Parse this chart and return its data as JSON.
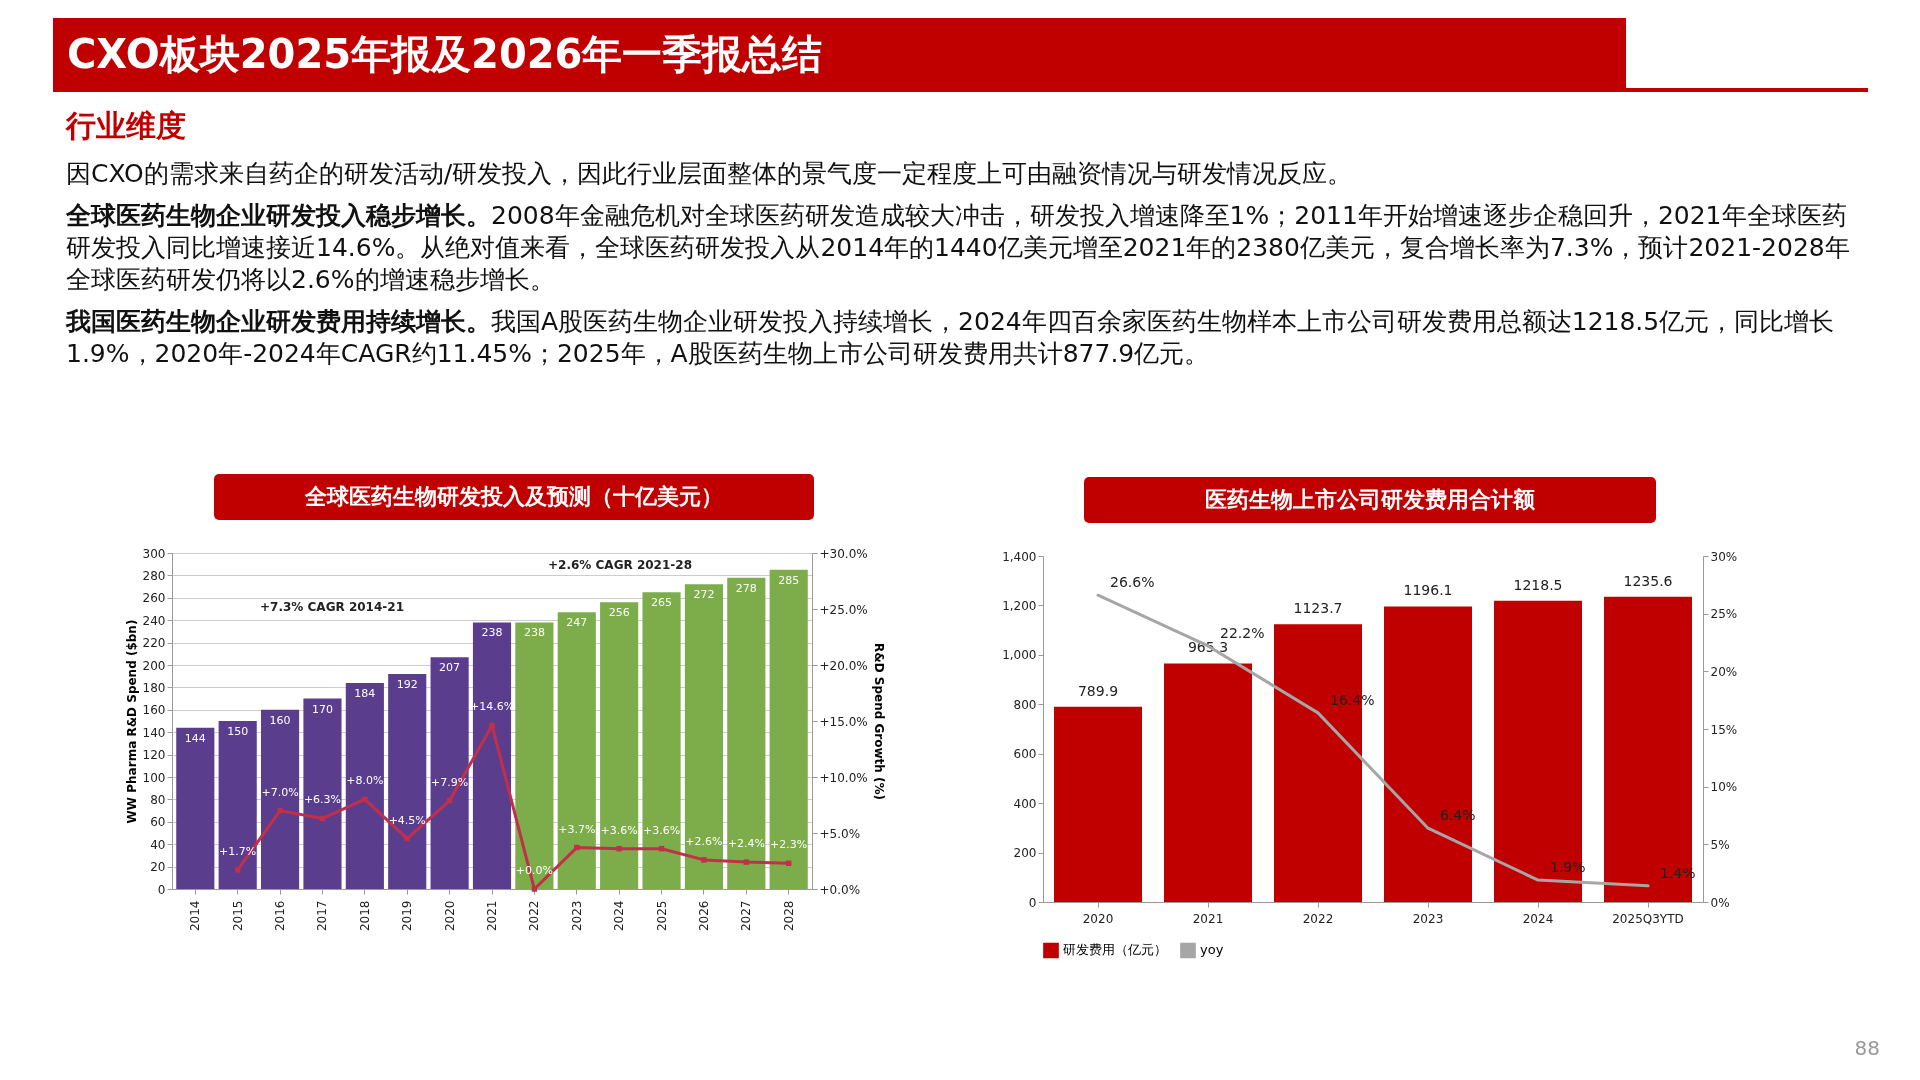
{
  "chart_data": [
    {
      "type": "other",
      "title": "CXO板块2025年报及2026年一季报总结",
      "subtitle": "行业维度",
      "annotations": [
        "因CXO的需求来自药企的研发活动/研发投入，因此行业层面整体的景气度一定程度上可由融资情况与研发情况反应。",
        "全球医药生物企业研发投入稳步增长。2008年金融危机对全球医药研发造成较大冲击，研发投入增速降至1%；2011年开始增速逐步企稳回升，2021年全球医药研发投入同比增速接近14.6%。从绝对值来看，全球医药研发投入从2014年的1440亿美元增至2021年的2380亿美元，复合增长率为7.3%，预计2021-2028年全球医药研发仍将以2.6%的增速稳步增长。",
        "我国医药生物企业研发费用持续增长。我国A股医药生物企业研发投入持续增长，2024年四百余家医药生物样本上市公司研发费用总额达1218.5亿元，同比增长1.9%，2020年-2024年CAGR约11.45%；2025年，A股医药生物上市公司研发费用共计877.9亿元。",
        "88"
      ]
    },
    {
      "type": "bar",
      "title": "全球医药生物研发投入及预测（十亿美元）",
      "ylabel": "WW Pharma R&D Spend ($bn)",
      "y2label": "R&D Spend Growth (%)",
      "categories": [
        "2014",
        "2015",
        "2016",
        "2017",
        "2018",
        "2019",
        "2020",
        "2021",
        "2022",
        "2023",
        "2024",
        "2025",
        "2026",
        "2027",
        "2028"
      ],
      "series": [
        {
          "type": "bar",
          "colors": [
            "#5b3d8e",
            "#5b3d8e",
            "#5b3d8e",
            "#5b3d8e",
            "#5b3d8e",
            "#5b3d8e",
            "#5b3d8e",
            "#5b3d8e",
            "#7cad4a",
            "#7cad4a",
            "#7cad4a",
            "#7cad4a",
            "#7cad4a",
            "#7cad4a",
            "#7cad4a"
          ],
          "values": [
            144,
            150,
            160,
            170,
            184,
            192,
            207,
            238,
            238,
            247,
            256,
            265,
            272,
            278,
            285
          ],
          "value_labels": [
            "144",
            "150",
            "160",
            "170",
            "184",
            "192",
            "207",
            "238",
            "238",
            "247",
            "256",
            "265",
            "272",
            "278",
            "285"
          ]
        },
        {
          "type": "line",
          "axis": "y2",
          "color": "#c0304a",
          "values": [
            null,
            1.7,
            7.0,
            6.3,
            8.0,
            4.5,
            7.9,
            14.6,
            0.0,
            3.7,
            3.6,
            3.6,
            2.6,
            2.4,
            2.3
          ],
          "value_labels": [
            null,
            "+1.7%",
            "+7.0%",
            "+6.3%",
            "+8.0%",
            "+4.5%",
            "+7.9%",
            "+14.6%",
            "+0.0%",
            "+3.7%",
            "+3.6%",
            "+3.6%",
            "+2.6%",
            "+2.4%",
            "+2.3%"
          ]
        }
      ],
      "ylim": [
        0,
        300
      ],
      "yticks": [
        0,
        20,
        40,
        60,
        80,
        100,
        120,
        140,
        160,
        180,
        200,
        220,
        240,
        260,
        280,
        300
      ],
      "y2lim": [
        0,
        30
      ],
      "y2ticks": [
        {
          "value": 0,
          "label": "+0.0%"
        },
        {
          "value": 5,
          "label": "+5.0%"
        },
        {
          "value": 10,
          "label": "+10.0%"
        },
        {
          "value": 15,
          "label": "+15.0%"
        },
        {
          "value": 20,
          "label": "+20.0%"
        },
        {
          "value": 25,
          "label": "+25.0%"
        },
        {
          "value": 30,
          "label": "+30.0%"
        }
      ],
      "annotations": [
        "+7.3% CAGR 2014-21",
        "+2.6% CAGR 2021-28"
      ],
      "grid": "y",
      "marker": "square",
      "legend": false
    },
    {
      "type": "bar",
      "title": "医药生物上市公司研发费用合计额",
      "categories": [
        "2020",
        "2021",
        "2022",
        "2023",
        "2024",
        "2025Q3YTD"
      ],
      "series": [
        {
          "type": "bar",
          "name": "研发费用（亿元）",
          "color": "#c00000",
          "values": [
            789.9,
            965.3,
            1123.7,
            1196.1,
            1218.5,
            1235.6
          ],
          "value_labels": [
            "789.9",
            "965.3",
            "1123.7",
            "1196.1",
            "1218.5",
            "1235.6"
          ]
        },
        {
          "type": "line",
          "name": "yoy",
          "axis": "y2",
          "color": "#a6a6a6",
          "values": [
            26.6,
            22.2,
            16.4,
            6.4,
            1.9,
            1.4
          ],
          "value_labels": [
            "26.6%",
            "22.2%",
            "16.4%",
            "6.4%",
            "1.9%",
            "1.4%"
          ]
        }
      ],
      "ylim": [
        0,
        1400
      ],
      "yticks": [
        0,
        200,
        400,
        600,
        800,
        {
          "value": 1000,
          "label": "1,000"
        },
        {
          "value": 1200,
          "label": "1,200"
        },
        {
          "value": 1400,
          "label": "1,400"
        }
      ],
      "y2lim": [
        0,
        30
      ],
      "y2ticks": [
        {
          "value": 0,
          "label": "0%"
        },
        {
          "value": 5,
          "label": "5%"
        },
        {
          "value": 10,
          "label": "10%"
        },
        {
          "value": 15,
          "label": "15%"
        },
        {
          "value": 20,
          "label": "20%"
        },
        {
          "value": 25,
          "label": "25%"
        },
        {
          "value": 30,
          "label": "30%"
        }
      ],
      "grid": false,
      "marker": "none",
      "legend": "bottom"
    }
  ]
}
